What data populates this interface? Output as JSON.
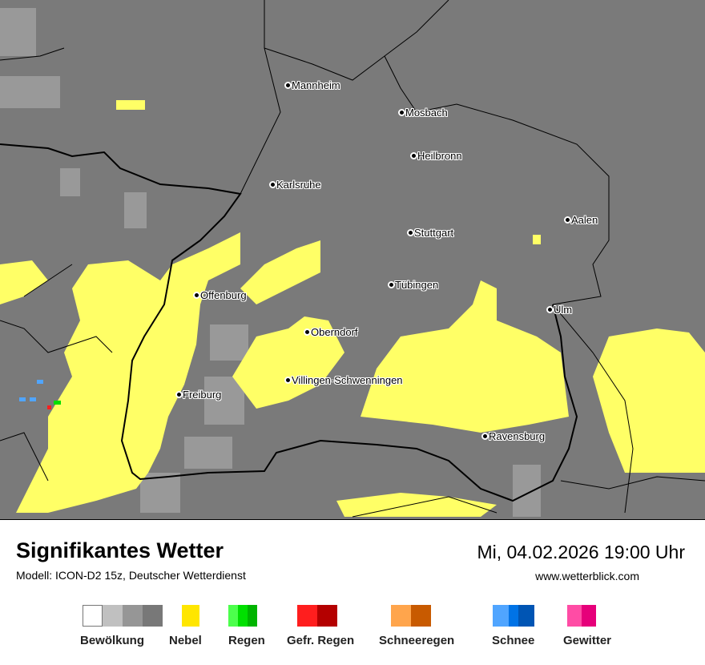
{
  "header": {
    "title": "Signifikantes Wetter",
    "model": "Modell: ICON-D2 15z, Deutscher Wetterdienst",
    "datetime": "Mi, 04.02.2026 19:00 Uhr",
    "website": "www.wetterblick.com"
  },
  "map": {
    "background_color": "#7a7a7a",
    "fog_color": "#ffff66",
    "cloud_light_color": "#999999",
    "cities": [
      "Mannheim",
      "Mosbach",
      "Heilbronn",
      "Karlsruhe",
      "Aalen",
      "Stuttgart",
      "Tübingen",
      "Offenburg",
      "Ulm",
      "Oberndorf",
      "Villingen-Schwenningen",
      "Freiburg",
      "Ravensburg"
    ]
  },
  "legend": [
    {
      "label": "Bewölkung",
      "colors": [
        "#ffffff",
        "#c0c0c0",
        "#969696",
        "#787878"
      ]
    },
    {
      "label": "Nebel",
      "colors": [
        "#ffe600"
      ]
    },
    {
      "label": "Regen",
      "colors": [
        "#4cff4c",
        "#00e000",
        "#00b400"
      ]
    },
    {
      "label": "Gefr. Regen",
      "colors": [
        "#ff1e1e",
        "#b40000"
      ]
    },
    {
      "label": "Schneeregen",
      "colors": [
        "#ffa54c",
        "#c85a00"
      ]
    },
    {
      "label": "Schnee",
      "colors": [
        "#50a5ff",
        "#0073e6",
        "#0055b4"
      ]
    },
    {
      "label": "Gewitter",
      "colors": [
        "#ff4ca5",
        "#e6007a"
      ]
    }
  ]
}
